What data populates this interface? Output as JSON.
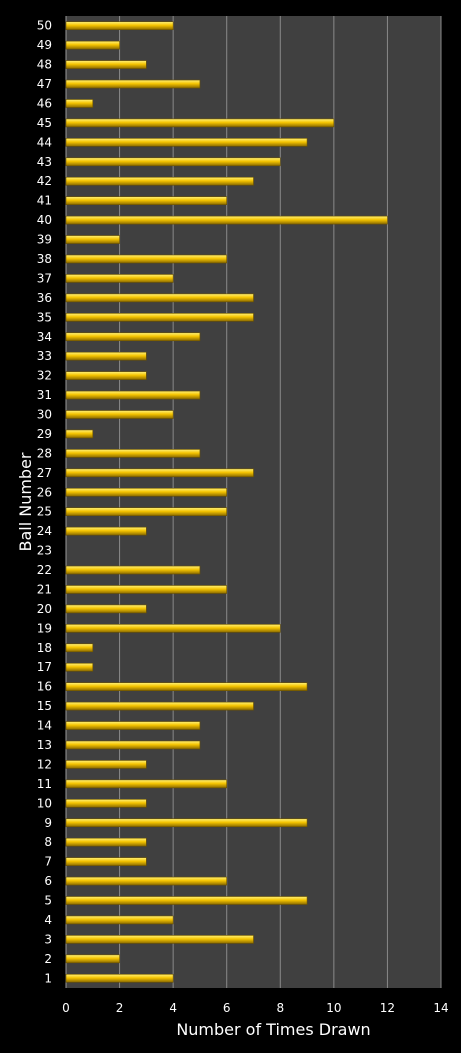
{
  "chart_data": {
    "type": "bar",
    "orientation": "horizontal",
    "title": "",
    "xlabel": "Number of Times Drawn",
    "ylabel": "Ball Number",
    "xlim": [
      0,
      14
    ],
    "xticks": [
      0,
      2,
      4,
      6,
      8,
      10,
      12,
      14
    ],
    "grid": "vertical",
    "colors": {
      "background": "#000000",
      "plot_area": "#404040",
      "gridline": "#8a8a8a",
      "bar_top": "#fff27a",
      "bar_mid": "#f5c400",
      "bar_bottom": "#8a6a00",
      "text": "#ffffff"
    },
    "categories": [
      "1",
      "2",
      "3",
      "4",
      "5",
      "6",
      "7",
      "8",
      "9",
      "10",
      "11",
      "12",
      "13",
      "14",
      "15",
      "16",
      "17",
      "18",
      "19",
      "20",
      "21",
      "22",
      "23",
      "24",
      "25",
      "26",
      "27",
      "28",
      "29",
      "30",
      "31",
      "32",
      "33",
      "34",
      "35",
      "36",
      "37",
      "38",
      "39",
      "40",
      "41",
      "42",
      "43",
      "44",
      "45",
      "46",
      "47",
      "48",
      "49",
      "50"
    ],
    "values": [
      4,
      2,
      7,
      4,
      9,
      6,
      3,
      3,
      9,
      3,
      6,
      3,
      5,
      5,
      7,
      9,
      1,
      1,
      8,
      3,
      6,
      5,
      0,
      3,
      6,
      6,
      7,
      5,
      1,
      4,
      5,
      3,
      3,
      5,
      7,
      7,
      4,
      6,
      2,
      12,
      6,
      7,
      8,
      9,
      10,
      1,
      5,
      3,
      2,
      4
    ]
  }
}
